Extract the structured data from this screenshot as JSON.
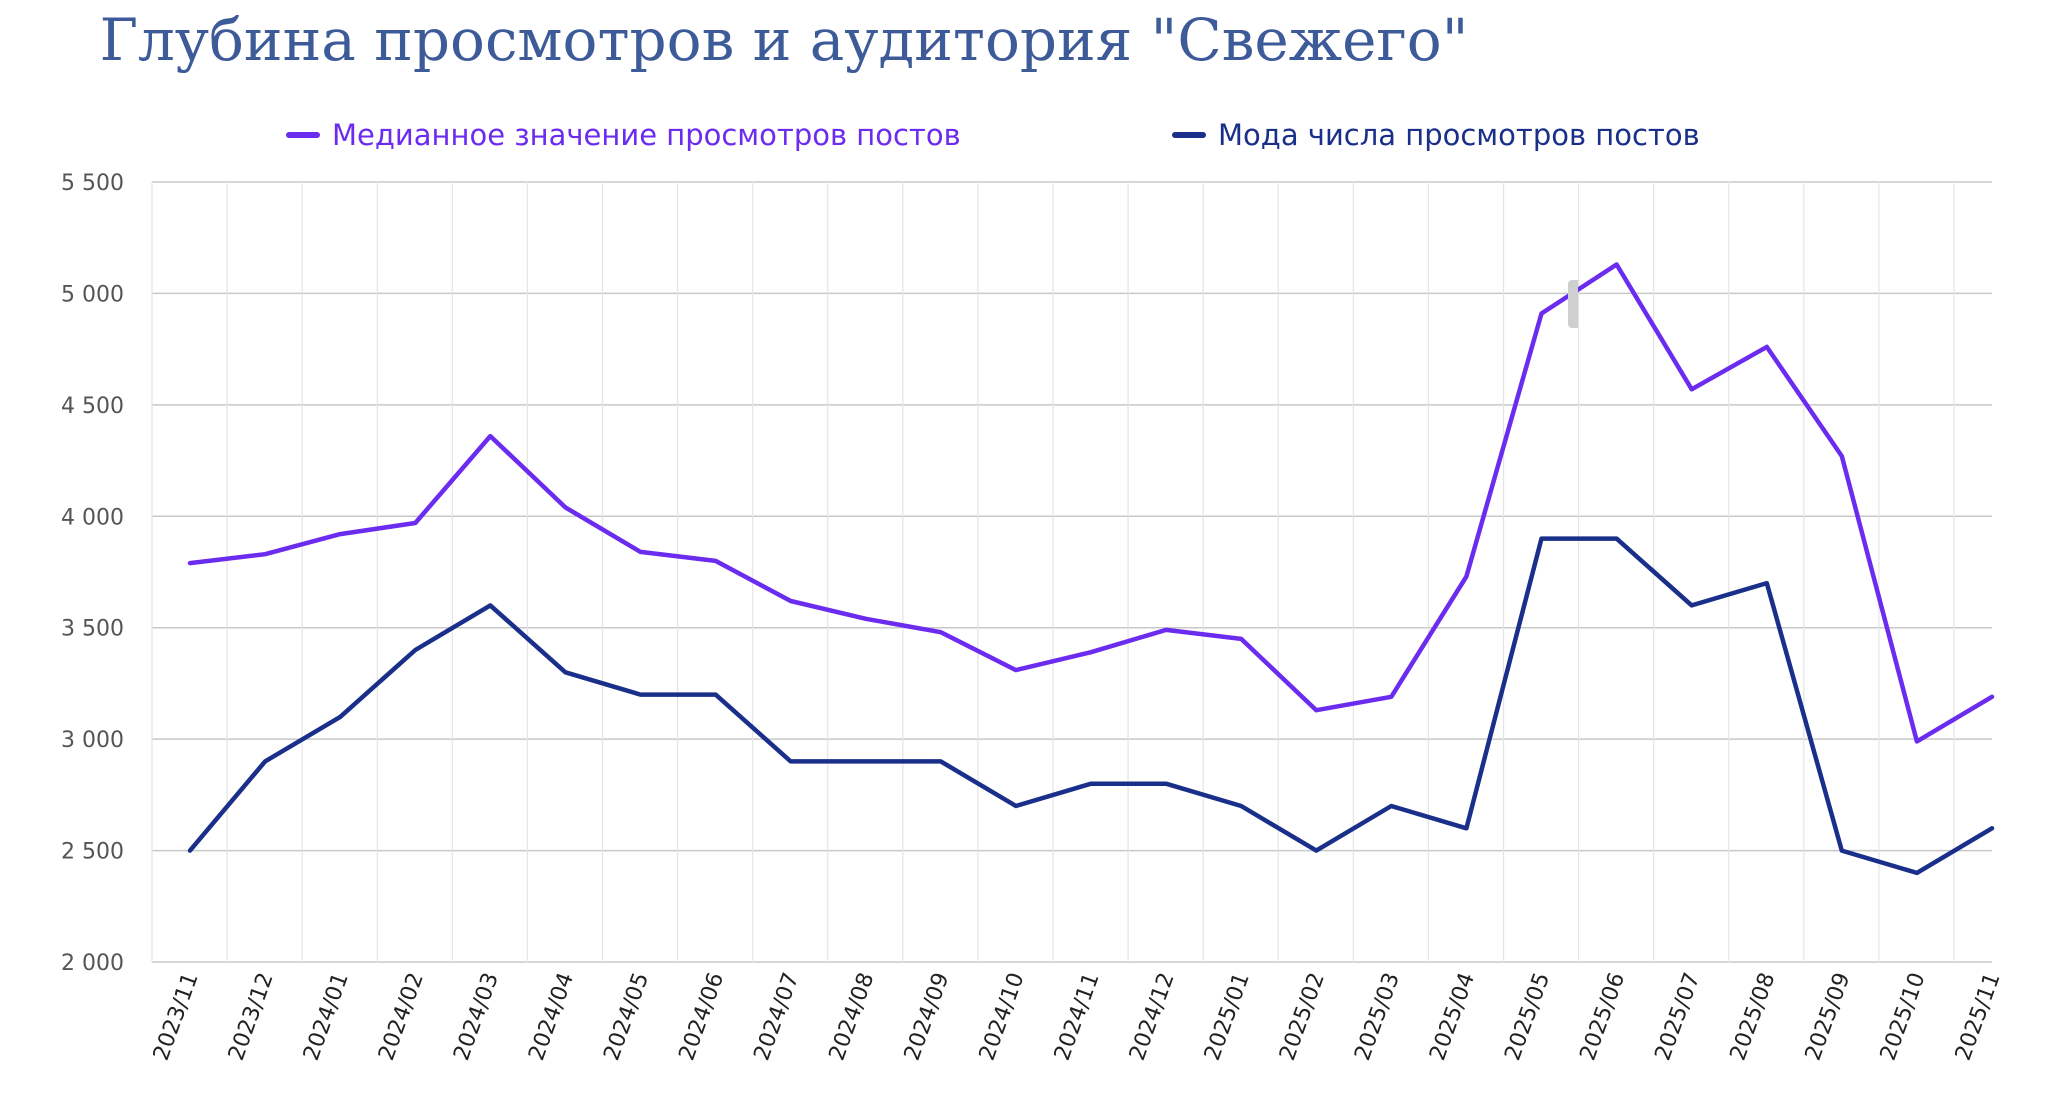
{
  "chart_data": {
    "type": "line",
    "title": "Глубина просмотров и аудитория \"Свежего\"",
    "xlabel": "",
    "ylabel": "",
    "ylim": [
      2000,
      5500
    ],
    "yticks": [
      2000,
      2500,
      3000,
      3500,
      4000,
      4500,
      5000,
      5500
    ],
    "ytick_labels": [
      "2 000",
      "2 500",
      "3 000",
      "3 500",
      "4 000",
      "4 500",
      "5 000",
      "5 500"
    ],
    "grid": true,
    "legend_position": "top",
    "categories": [
      "2023/11",
      "2023/12",
      "2024/01",
      "2024/02",
      "2024/03",
      "2024/04",
      "2024/05",
      "2024/06",
      "2024/07",
      "2024/08",
      "2024/09",
      "2024/10",
      "2024/11",
      "2024/12",
      "2025/01",
      "2025/02",
      "2025/03",
      "2025/04",
      "2025/05",
      "2025/06",
      "2025/07",
      "2025/08",
      "2025/09",
      "2025/10",
      "2025/11"
    ],
    "series": [
      {
        "name": "Медианное значение просмотров постов",
        "color": "#6b2cf0",
        "values": [
          3790,
          3830,
          3920,
          3970,
          4360,
          4040,
          3840,
          3800,
          3620,
          3540,
          3480,
          3310,
          3390,
          3490,
          3450,
          3130,
          3190,
          3730,
          4910,
          5130,
          4570,
          4760,
          4270,
          2990,
          3190
        ]
      },
      {
        "name": "Мода числа просмотров постов",
        "color": "#1a2f8a",
        "values": [
          2500,
          2900,
          3100,
          3400,
          3600,
          3300,
          3200,
          3200,
          2900,
          2900,
          2900,
          2700,
          2800,
          2800,
          2700,
          2500,
          2700,
          2600,
          3900,
          3900,
          3600,
          3700,
          2500,
          2400,
          2600
        ]
      }
    ]
  }
}
